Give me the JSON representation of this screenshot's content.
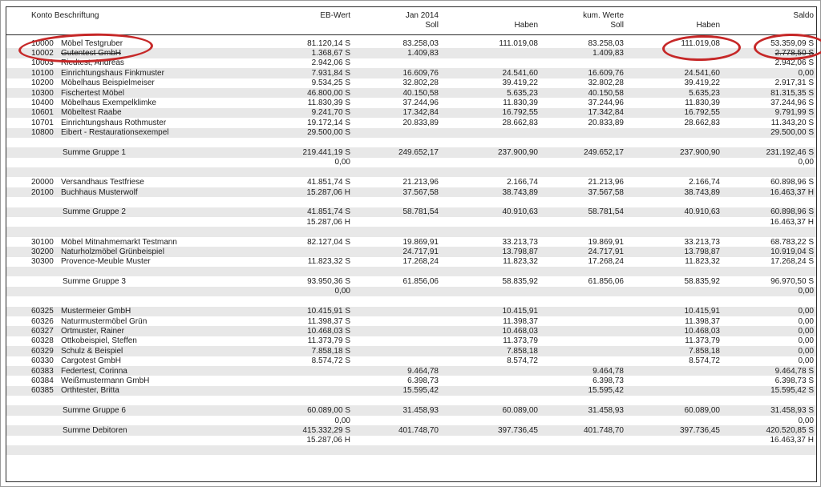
{
  "report": {
    "header": {
      "konto_label": "Konto Beschriftung",
      "eb_label": "EB-Wert",
      "period_label": "Jan 2014",
      "period_soll_label": "Soll",
      "period_haben_label": "Haben",
      "kum_label": "kum. Werte",
      "kum_soll_label": "Soll",
      "kum_haben_label": "Haben",
      "saldo_label": "Saldo"
    },
    "rows": [
      {
        "type": "account",
        "konto": "10000",
        "name": "Möbel Testgruber",
        "eb": "81.120,14 S",
        "jsoll": "83.258,03",
        "jhaben": "111.019,08",
        "ksoll": "83.258,03",
        "khaben": "111.019,08",
        "saldo": "53.359,09 S"
      },
      {
        "type": "account",
        "konto": "10002",
        "name": "Gutentest GmbH",
        "strike": true,
        "eb": "1.368,67 S",
        "jsoll": "1.409,83",
        "jhaben": "",
        "ksoll": "1.409,83",
        "khaben": "",
        "saldo": "2.778,50 S"
      },
      {
        "type": "account",
        "konto": "10003",
        "name": "Riedtest, Andreas",
        "eb": "2.942,06 S",
        "jsoll": "",
        "jhaben": "",
        "ksoll": "",
        "khaben": "",
        "saldo": "2.942,06 S"
      },
      {
        "type": "account",
        "konto": "10100",
        "name": "Einrichtungshaus Finkmuster",
        "eb": "7.931,84 S",
        "jsoll": "16.609,76",
        "jhaben": "24.541,60",
        "ksoll": "16.609,76",
        "khaben": "24.541,60",
        "saldo": "0,00"
      },
      {
        "type": "account",
        "konto": "10200",
        "name": "Möbelhaus Beispielmeiser",
        "eb": "9.534,25 S",
        "jsoll": "32.802,28",
        "jhaben": "39.419,22",
        "ksoll": "32.802,28",
        "khaben": "39.419,22",
        "saldo": "2.917,31 S"
      },
      {
        "type": "account",
        "konto": "10300",
        "name": "Fischertest Möbel",
        "eb": "46.800,00 S",
        "jsoll": "40.150,58",
        "jhaben": "5.635,23",
        "ksoll": "40.150,58",
        "khaben": "5.635,23",
        "saldo": "81.315,35 S"
      },
      {
        "type": "account",
        "konto": "10400",
        "name": "Möbelhaus Exempelklimke",
        "eb": "11.830,39 S",
        "jsoll": "37.244,96",
        "jhaben": "11.830,39",
        "ksoll": "37.244,96",
        "khaben": "11.830,39",
        "saldo": "37.244,96 S"
      },
      {
        "type": "account",
        "konto": "10601",
        "name": "Möbeltest Raabe",
        "eb": "9.241,70 S",
        "jsoll": "17.342,84",
        "jhaben": "16.792,55",
        "ksoll": "17.342,84",
        "khaben": "16.792,55",
        "saldo": "9.791,99 S"
      },
      {
        "type": "account",
        "konto": "10701",
        "name": "Einrichtungshaus Rothmuster",
        "eb": "19.172,14 S",
        "jsoll": "20.833,89",
        "jhaben": "28.662,83",
        "ksoll": "20.833,89",
        "khaben": "28.662,83",
        "saldo": "11.343,20 S"
      },
      {
        "type": "account",
        "konto": "10800",
        "name": "Eibert - Restaurationsexempel",
        "eb": "29.500,00 S",
        "jsoll": "",
        "jhaben": "",
        "ksoll": "",
        "khaben": "",
        "saldo": "29.500,00 S"
      },
      {
        "type": "blank"
      },
      {
        "type": "sum",
        "name": "Summe Gruppe 1",
        "eb": "219.441,19 S",
        "jsoll": "249.652,17",
        "jhaben": "237.900,90",
        "ksoll": "249.652,17",
        "khaben": "237.900,90",
        "saldo": "231.192,46 S"
      },
      {
        "type": "cont",
        "eb": "0,00",
        "jsoll": "",
        "jhaben": "",
        "ksoll": "",
        "khaben": "",
        "saldo": "0,00"
      },
      {
        "type": "blank"
      },
      {
        "type": "account",
        "konto": "20000",
        "name": "Versandhaus Testfriese",
        "eb": "41.851,74 S",
        "jsoll": "21.213,96",
        "jhaben": "2.166,74",
        "ksoll": "21.213,96",
        "khaben": "2.166,74",
        "saldo": "60.898,96 S"
      },
      {
        "type": "account",
        "konto": "20100",
        "name": "Buchhaus Musterwolf",
        "eb": "15.287,06 H",
        "jsoll": "37.567,58",
        "jhaben": "38.743,89",
        "ksoll": "37.567,58",
        "khaben": "38.743,89",
        "saldo": "16.463,37 H"
      },
      {
        "type": "blank"
      },
      {
        "type": "sum",
        "name": "Summe Gruppe 2",
        "eb": "41.851,74 S",
        "jsoll": "58.781,54",
        "jhaben": "40.910,63",
        "ksoll": "58.781,54",
        "khaben": "40.910,63",
        "saldo": "60.898,96 S"
      },
      {
        "type": "cont",
        "eb": "15.287,06 H",
        "jsoll": "",
        "jhaben": "",
        "ksoll": "",
        "khaben": "",
        "saldo": "16.463,37 H"
      },
      {
        "type": "blank"
      },
      {
        "type": "account",
        "konto": "30100",
        "name": "Möbel Mitnahmemarkt Testmann",
        "eb": "82.127,04 S",
        "jsoll": "19.869,91",
        "jhaben": "33.213,73",
        "ksoll": "19.869,91",
        "khaben": "33.213,73",
        "saldo": "68.783,22 S"
      },
      {
        "type": "account",
        "konto": "30200",
        "name": "Naturholzmöbel Grünbeispiel",
        "eb": "",
        "jsoll": "24.717,91",
        "jhaben": "13.798,87",
        "ksoll": "24.717,91",
        "khaben": "13.798,87",
        "saldo": "10.919,04 S"
      },
      {
        "type": "account",
        "konto": "30300",
        "name": "Provence-Meuble Muster",
        "eb": "11.823,32 S",
        "jsoll": "17.268,24",
        "jhaben": "11.823,32",
        "ksoll": "17.268,24",
        "khaben": "11.823,32",
        "saldo": "17.268,24 S"
      },
      {
        "type": "blank"
      },
      {
        "type": "sum",
        "name": "Summe Gruppe 3",
        "eb": "93.950,36 S",
        "jsoll": "61.856,06",
        "jhaben": "58.835,92",
        "ksoll": "61.856,06",
        "khaben": "58.835,92",
        "saldo": "96.970,50 S"
      },
      {
        "type": "cont",
        "eb": "0,00",
        "jsoll": "",
        "jhaben": "",
        "ksoll": "",
        "khaben": "",
        "saldo": "0,00"
      },
      {
        "type": "blank"
      },
      {
        "type": "account",
        "konto": "60325",
        "name": "Mustermeier GmbH",
        "eb": "10.415,91 S",
        "jsoll": "",
        "jhaben": "10.415,91",
        "ksoll": "",
        "khaben": "10.415,91",
        "saldo": "0,00"
      },
      {
        "type": "account",
        "konto": "60326",
        "name": "Naturmustermöbel Grün",
        "eb": "11.398,37 S",
        "jsoll": "",
        "jhaben": "11.398,37",
        "ksoll": "",
        "khaben": "11.398,37",
        "saldo": "0,00"
      },
      {
        "type": "account",
        "konto": "60327",
        "name": "Ortmuster, Rainer",
        "eb": "10.468,03 S",
        "jsoll": "",
        "jhaben": "10.468,03",
        "ksoll": "",
        "khaben": "10.468,03",
        "saldo": "0,00"
      },
      {
        "type": "account",
        "konto": "60328",
        "name": "Ottkobeispiel, Steffen",
        "eb": "11.373,79 S",
        "jsoll": "",
        "jhaben": "11.373,79",
        "ksoll": "",
        "khaben": "11.373,79",
        "saldo": "0,00"
      },
      {
        "type": "account",
        "konto": "60329",
        "name": "Schulz & Beispiel",
        "eb": "7.858,18 S",
        "jsoll": "",
        "jhaben": "7.858,18",
        "ksoll": "",
        "khaben": "7.858,18",
        "saldo": "0,00"
      },
      {
        "type": "account",
        "konto": "60330",
        "name": "Cargotest GmbH",
        "eb": "8.574,72 S",
        "jsoll": "",
        "jhaben": "8.574,72",
        "ksoll": "",
        "khaben": "8.574,72",
        "saldo": "0,00"
      },
      {
        "type": "account",
        "konto": "60383",
        "name": "Federtest, Corinna",
        "eb": "",
        "jsoll": "9.464,78",
        "jhaben": "",
        "ksoll": "9.464,78",
        "khaben": "",
        "saldo": "9.464,78 S"
      },
      {
        "type": "account",
        "konto": "60384",
        "name": "Weißmustermann GmbH",
        "eb": "",
        "jsoll": "6.398,73",
        "jhaben": "",
        "ksoll": "6.398,73",
        "khaben": "",
        "saldo": "6.398,73 S"
      },
      {
        "type": "account",
        "konto": "60385",
        "name": "Orthtester, Britta",
        "eb": "",
        "jsoll": "15.595,42",
        "jhaben": "",
        "ksoll": "15.595,42",
        "khaben": "",
        "saldo": "15.595,42 S"
      },
      {
        "type": "blank"
      },
      {
        "type": "sum",
        "name": "Summe Gruppe 6",
        "eb": "60.089,00 S",
        "jsoll": "31.458,93",
        "jhaben": "60.089,00",
        "ksoll": "31.458,93",
        "khaben": "60.089,00",
        "saldo": "31.458,93 S"
      },
      {
        "type": "cont",
        "eb": "0,00",
        "jsoll": "",
        "jhaben": "",
        "ksoll": "",
        "khaben": "",
        "saldo": "0,00"
      },
      {
        "type": "sum",
        "name": "Summe Debitoren",
        "eb": "415.332,29 S",
        "jsoll": "401.748,70",
        "jhaben": "397.736,45",
        "ksoll": "401.748,70",
        "khaben": "397.736,45",
        "saldo": "420.520,85 S"
      },
      {
        "type": "cont",
        "eb": "15.287,06 H",
        "jsoll": "",
        "jhaben": "",
        "ksoll": "",
        "khaben": "",
        "saldo": "16.463,37 H"
      },
      {
        "type": "blank"
      }
    ],
    "annotations": {
      "color": "#c62828",
      "items": [
        {
          "shape": "ellipse",
          "around": "Konto 10000 Möbel Testgruber"
        },
        {
          "shape": "ellipse",
          "around": "kum. Werte Haben 111.019,08"
        },
        {
          "shape": "ellipse",
          "around": "Saldo 53.359,09 S"
        }
      ]
    }
  }
}
